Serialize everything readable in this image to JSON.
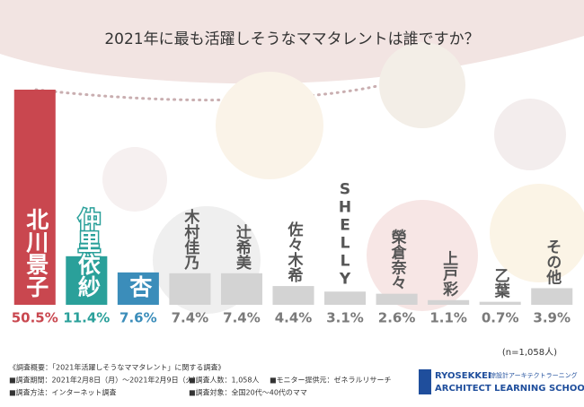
{
  "chart_data": {
    "type": "bar",
    "title": "2021年に最も活躍しそうなママタレントは誰ですか？",
    "categories": [
      "北川景子",
      "仲里依紗",
      "杏",
      "木村佳乃",
      "辻希美",
      "佐々木希",
      "SHELLY",
      "榮倉奈々",
      "上戸彩",
      "乙葉",
      "その他"
    ],
    "values": [
      50.5,
      11.4,
      7.6,
      7.4,
      7.4,
      4.4,
      3.1,
      2.6,
      1.1,
      0.7,
      3.9
    ],
    "value_labels": [
      "50.5%",
      "11.4%",
      "7.6%",
      "7.4%",
      "7.4%",
      "4.4%",
      "3.1%",
      "2.6%",
      "1.1%",
      "0.7%",
      "3.9%"
    ],
    "colors": [
      "#c9474f",
      "#2aa09a",
      "#3b8dba",
      "#d3d3d3",
      "#d3d3d3",
      "#d3d3d3",
      "#d3d3d3",
      "#d3d3d3",
      "#d3d3d3",
      "#d3d3d3",
      "#d3d3d3"
    ],
    "value_label_colors": [
      "#c9474f",
      "#2aa09a",
      "#3b8dba",
      "#7a7a7a",
      "#7a7a7a",
      "#7a7a7a",
      "#7a7a7a",
      "#7a7a7a",
      "#7a7a7a",
      "#7a7a7a",
      "#7a7a7a"
    ],
    "note": "(n=1,058人)"
  },
  "footer": {
    "heading": "《調査概要：「2021年活躍しそうなママタレント」に関する調査》",
    "items": [
      "■調査期間：2021年2月8日（月）～2021年2月9日（火）",
      "■調査人数：1,058人",
      "■モニター提供元：ゼネラルリサーチ",
      "■調査方法：インターネット調査",
      "■調査対象：全国20代～40代のママ"
    ]
  },
  "logo": {
    "name": "RYOSEKKEI",
    "jp": "諒設計アーキテクトラーニング",
    "en": "ARCHITECT LEARNING SCHOOL"
  }
}
